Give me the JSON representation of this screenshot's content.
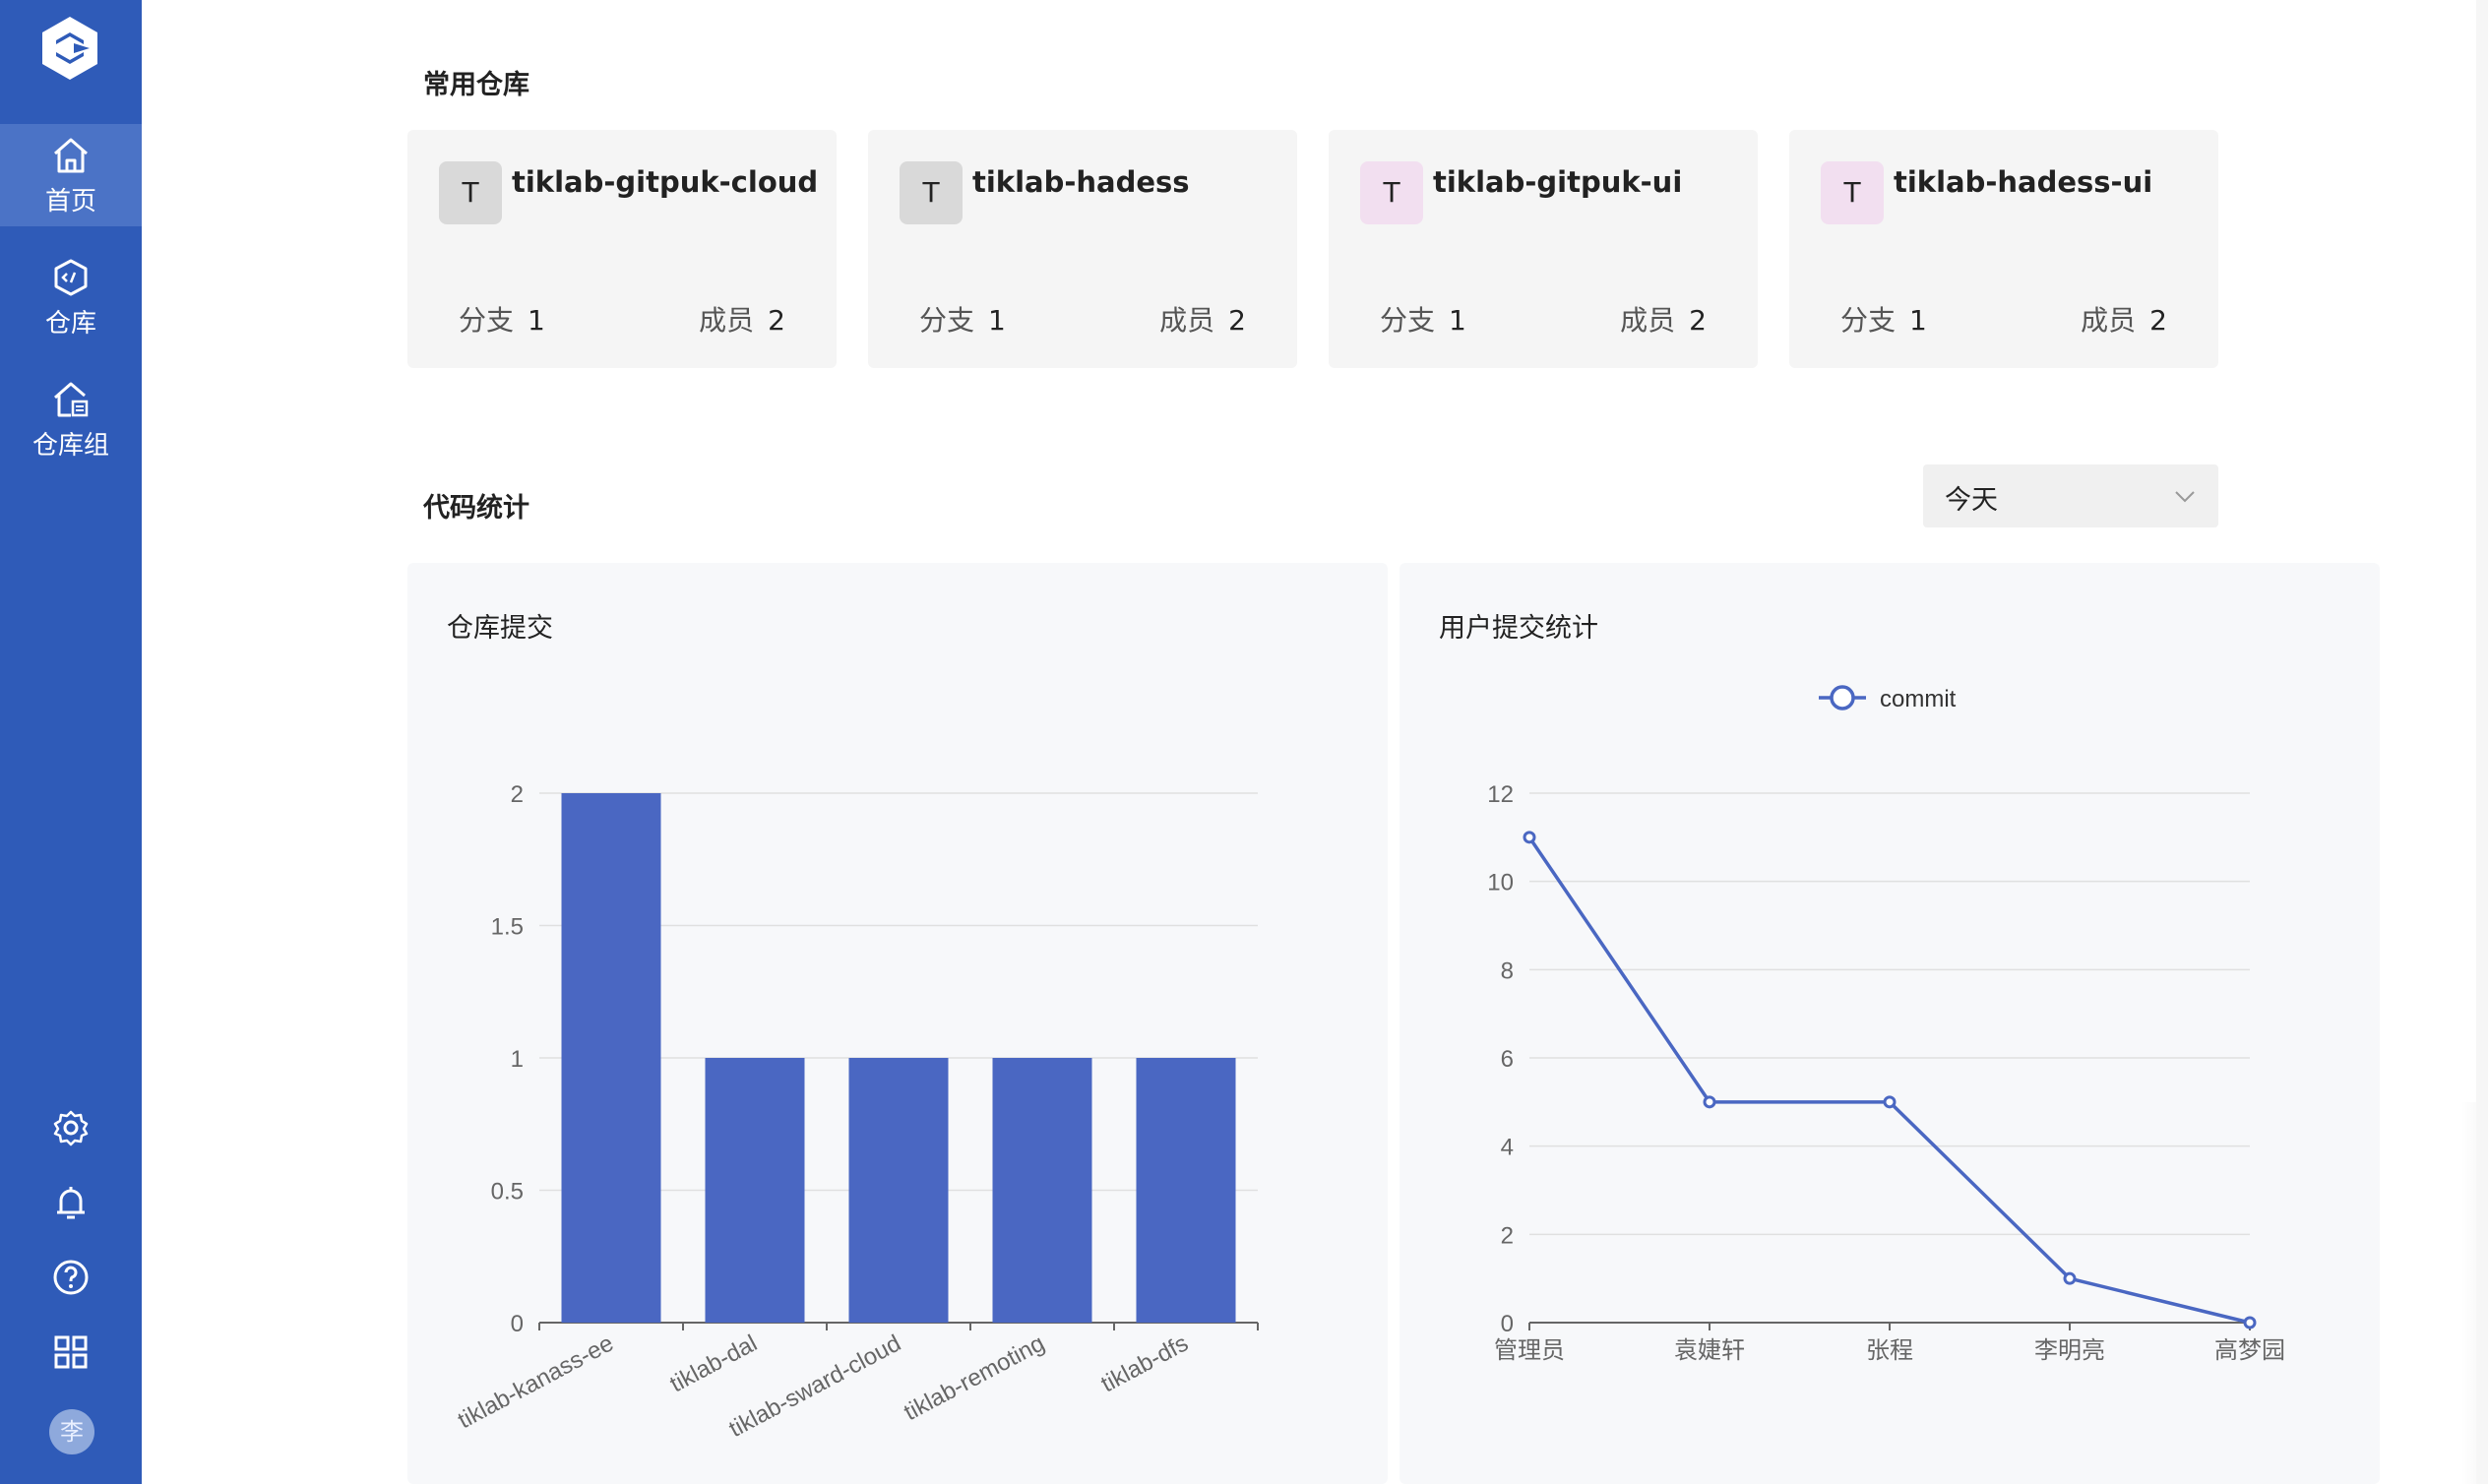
{
  "sidebar": {
    "items": [
      {
        "label": "首页",
        "icon": "home-icon",
        "active": true
      },
      {
        "label": "仓库",
        "icon": "repository-icon",
        "active": false
      },
      {
        "label": "仓库组",
        "icon": "repository-group-icon",
        "active": false
      }
    ],
    "bottom_icons": [
      "settings-icon",
      "bell-icon",
      "help-icon",
      "apps-grid-icon"
    ],
    "avatar_text": "李",
    "color": "#2f5bb8",
    "active_color": "#4b73c6"
  },
  "frequent": {
    "title": "常用仓库",
    "repos": [
      {
        "badge": "T",
        "badge_color": "#d9d9d9",
        "name": "tiklab-gitpuk-cloud",
        "branch_label": "分支",
        "branch_count": "1",
        "member_label": "成员",
        "member_count": "2"
      },
      {
        "badge": "T",
        "badge_color": "#d9d9d9",
        "name": "tiklab-hadess",
        "branch_label": "分支",
        "branch_count": "1",
        "member_label": "成员",
        "member_count": "2"
      },
      {
        "badge": "T",
        "badge_color": "#f2dff0",
        "name": "tiklab-gitpuk-ui",
        "branch_label": "分支",
        "branch_count": "1",
        "member_label": "成员",
        "member_count": "2"
      },
      {
        "badge": "T",
        "badge_color": "#f2dff0",
        "name": "tiklab-hadess-ui",
        "branch_label": "分支",
        "branch_count": "1",
        "member_label": "成员",
        "member_count": "2"
      }
    ]
  },
  "stats": {
    "title": "代码统计",
    "range_select": {
      "value": "今天"
    }
  },
  "chart_data": [
    {
      "type": "bar",
      "title": "仓库提交",
      "categories": [
        "tiklab-kanass-ee",
        "tiklab-dal",
        "tiklab-sward-cloud",
        "tiklab-remoting",
        "tiklab-dfs"
      ],
      "values": [
        2,
        1,
        1,
        1,
        1
      ],
      "ylim": [
        0,
        2
      ],
      "yticks": [
        "0",
        "0.5",
        "1",
        "1.5",
        "2"
      ],
      "grid": true,
      "color": "#4a67c2"
    },
    {
      "type": "line",
      "title": "用户提交统计",
      "categories": [
        "管理员",
        "袁婕轩",
        "张程",
        "李明亮",
        "高梦园"
      ],
      "series": [
        {
          "name": "commit",
          "values": [
            11,
            5,
            5,
            1,
            0
          ]
        }
      ],
      "ylim": [
        0,
        12
      ],
      "yticks": [
        "0",
        "2",
        "4",
        "6",
        "8",
        "10",
        "12"
      ],
      "legend": "top-center",
      "grid": true,
      "color": "#4a67c2"
    }
  ]
}
